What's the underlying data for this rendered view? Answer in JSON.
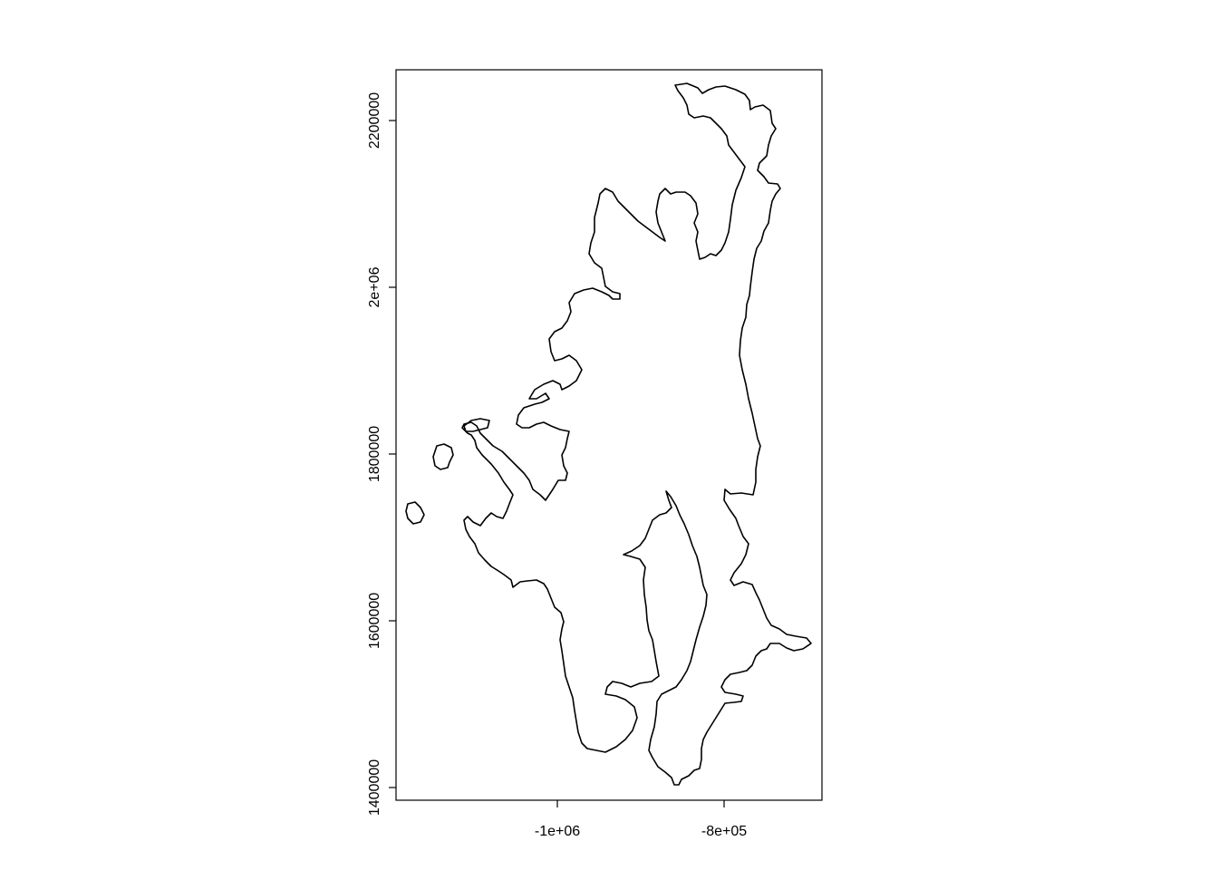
{
  "map": {
    "type": "outline",
    "x_axis": {
      "ticks": [
        {
          "value": -1000000,
          "label": "-1e+06"
        },
        {
          "value": -800000,
          "label": "-8e+05"
        }
      ]
    },
    "y_axis": {
      "ticks": [
        {
          "value": 1400000,
          "label": "1400000"
        },
        {
          "value": 1600000,
          "label": "1600000"
        },
        {
          "value": 1800000,
          "label": "1800000"
        },
        {
          "value": 2000000,
          "label": "2e+06"
        },
        {
          "value": 2200000,
          "label": "2200000"
        }
      ]
    },
    "colors": {
      "stroke": "#000000",
      "background": "#ffffff"
    }
  }
}
